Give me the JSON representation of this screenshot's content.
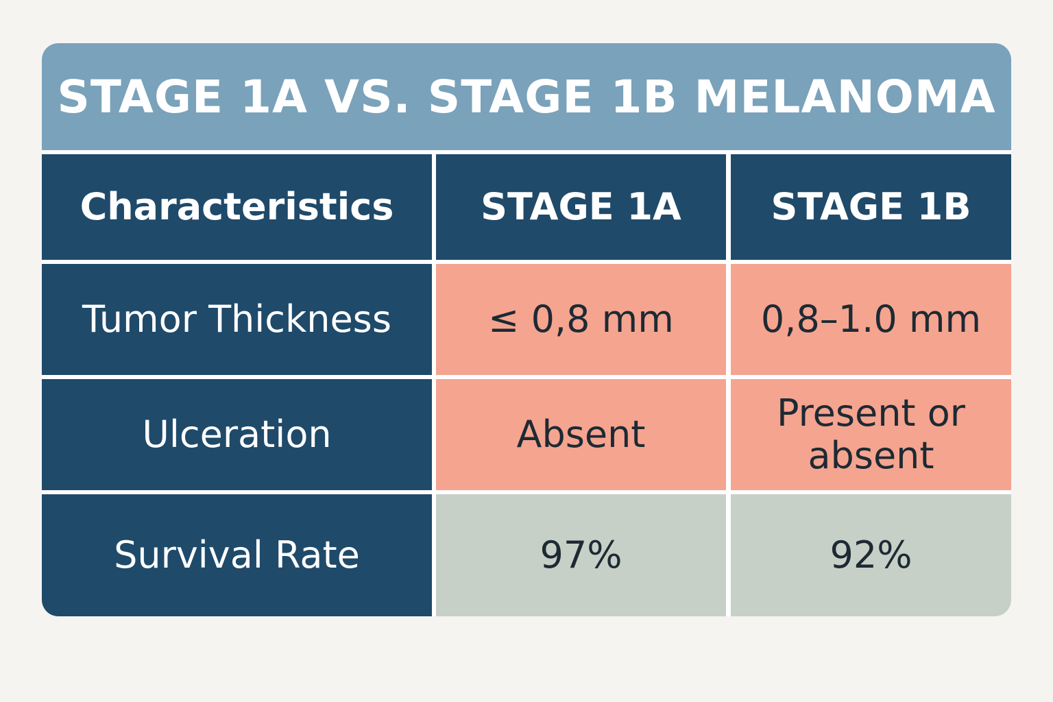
{
  "title": "STAGE 1A VS. STAGE 1B MELANOMA",
  "colors": {
    "title_bar": "#7aa2ba",
    "header_bg": "#1f4a6a",
    "feature_bg": "#f5a490",
    "survival_bg": "#c6d0c7",
    "page_bg": "#f5f4f1"
  },
  "table": {
    "headers": [
      "Characteristics",
      "STAGE 1A",
      "STAGE 1B"
    ],
    "rows": [
      {
        "label": "Tumor Thickness",
        "stage_1a": "≤ 0,8 mm",
        "stage_1b": "0,8–1.0 mm"
      },
      {
        "label": "Ulceration",
        "stage_1a": "Absent",
        "stage_1b": "Present or absent"
      },
      {
        "label": "Survival Rate",
        "stage_1a": "97%",
        "stage_1b": "92%"
      }
    ]
  }
}
